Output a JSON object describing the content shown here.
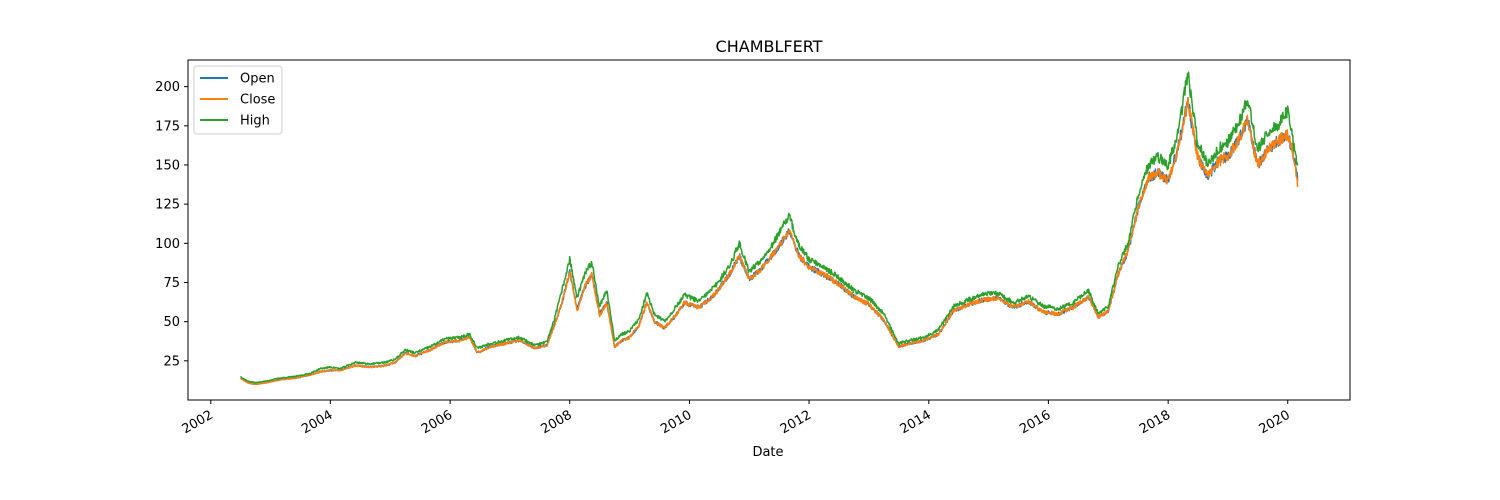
{
  "chart_data": {
    "type": "line",
    "title": "CHAMBLFERT",
    "xlabel": "Date",
    "ylabel": "",
    "x_ticks": [
      "2002",
      "2004",
      "2006",
      "2008",
      "2010",
      "2012",
      "2014",
      "2016",
      "2018",
      "2020"
    ],
    "y_ticks": [
      25,
      50,
      75,
      100,
      125,
      150,
      175,
      200
    ],
    "xlim": [
      "2001-08-15",
      "2021-01-15"
    ],
    "ylim": [
      0,
      217
    ],
    "grid": false,
    "legend_position": "top-left",
    "colors": {
      "Open": "#1f77b4",
      "Close": "#ff7f0e",
      "High": "#2ca02c"
    },
    "base_series": {
      "x": [
        "2002-07-01",
        "2002-08-15",
        "2002-10-01",
        "2002-12-01",
        "2003-03-01",
        "2003-06-01",
        "2003-09-01",
        "2003-11-01",
        "2004-01-01",
        "2004-03-01",
        "2004-06-01",
        "2004-09-01",
        "2004-12-01",
        "2005-02-01",
        "2005-04-01",
        "2005-06-01",
        "2005-09-01",
        "2005-12-01",
        "2006-03-01",
        "2006-05-01",
        "2006-06-15",
        "2006-09-01",
        "2006-12-01",
        "2007-03-01",
        "2007-06-01",
        "2007-08-15",
        "2007-10-01",
        "2007-11-15",
        "2008-01-01",
        "2008-02-15",
        "2008-04-01",
        "2008-05-15",
        "2008-07-01",
        "2008-08-15",
        "2008-10-01",
        "2008-11-15",
        "2009-01-01",
        "2009-03-01",
        "2009-04-15",
        "2009-06-01",
        "2009-08-01",
        "2009-10-01",
        "2009-12-01",
        "2010-03-01",
        "2010-06-01",
        "2010-09-01",
        "2010-11-01",
        "2011-01-01",
        "2011-03-01",
        "2011-05-01",
        "2011-07-01",
        "2011-09-01",
        "2011-11-01",
        "2012-01-01",
        "2012-04-01",
        "2012-07-01",
        "2012-10-01",
        "2013-01-01",
        "2013-04-01",
        "2013-07-01",
        "2013-09-01",
        "2013-12-01",
        "2014-03-01",
        "2014-06-01",
        "2014-09-01",
        "2014-12-01",
        "2015-03-01",
        "2015-06-01",
        "2015-09-01",
        "2015-12-01",
        "2016-03-01",
        "2016-06-01",
        "2016-09-01",
        "2016-11-01",
        "2017-01-01",
        "2017-03-01",
        "2017-05-01",
        "2017-07-01",
        "2017-09-01",
        "2017-11-01",
        "2018-01-01",
        "2018-03-01",
        "2018-05-01",
        "2018-07-01",
        "2018-09-01",
        "2018-11-01",
        "2019-01-01",
        "2019-03-01",
        "2019-05-01",
        "2019-07-01",
        "2019-09-01",
        "2019-11-01",
        "2020-01-01",
        "2020-02-01",
        "2020-03-01"
      ],
      "high": [
        15,
        12,
        11,
        12,
        14,
        15,
        17,
        20,
        21,
        20,
        24,
        23,
        24,
        26,
        32,
        30,
        34,
        39,
        40,
        42,
        33,
        36,
        38,
        40,
        35,
        37,
        52,
        70,
        90,
        65,
        80,
        88,
        60,
        70,
        38,
        42,
        44,
        52,
        68,
        55,
        50,
        58,
        67,
        63,
        72,
        85,
        100,
        82,
        88,
        96,
        106,
        118,
        98,
        90,
        85,
        78,
        70,
        65,
        55,
        36,
        38,
        40,
        45,
        60,
        64,
        68,
        68,
        62,
        66,
        60,
        58,
        62,
        70,
        55,
        60,
        85,
        100,
        130,
        150,
        155,
        150,
        170,
        208,
        165,
        150,
        160,
        165,
        175,
        192,
        160,
        170,
        175,
        185,
        165,
        150
      ],
      "open": [
        14,
        11,
        10,
        11,
        13,
        14,
        16,
        18,
        19,
        19,
        22,
        21,
        22,
        24,
        30,
        28,
        32,
        37,
        38,
        40,
        30,
        34,
        36,
        38,
        33,
        35,
        48,
        62,
        82,
        58,
        72,
        80,
        55,
        62,
        34,
        38,
        40,
        48,
        62,
        50,
        46,
        53,
        62,
        59,
        67,
        80,
        92,
        77,
        82,
        90,
        98,
        108,
        92,
        85,
        80,
        74,
        66,
        61,
        51,
        34,
        36,
        38,
        42,
        57,
        61,
        64,
        65,
        59,
        63,
        56,
        55,
        59,
        66,
        53,
        57,
        80,
        95,
        122,
        142,
        145,
        140,
        160,
        190,
        155,
        143,
        152,
        156,
        165,
        178,
        150,
        160,
        165,
        170,
        158,
        141
      ],
      "close": [
        14,
        11,
        10,
        11,
        13,
        14,
        16,
        18,
        19,
        19,
        22,
        21,
        22,
        24,
        30,
        28,
        32,
        37,
        38,
        40,
        30,
        34,
        36,
        38,
        33,
        35,
        48,
        62,
        82,
        57,
        72,
        80,
        54,
        62,
        34,
        38,
        40,
        48,
        62,
        50,
        46,
        53,
        62,
        59,
        67,
        80,
        92,
        77,
        82,
        90,
        98,
        108,
        92,
        85,
        80,
        74,
        66,
        61,
        51,
        34,
        36,
        38,
        42,
        57,
        61,
        64,
        65,
        59,
        63,
        56,
        55,
        59,
        66,
        53,
        57,
        80,
        95,
        122,
        142,
        145,
        140,
        160,
        190,
        155,
        143,
        152,
        156,
        165,
        178,
        150,
        160,
        165,
        170,
        158,
        138
      ]
    },
    "series": [
      {
        "name": "Open"
      },
      {
        "name": "Close"
      },
      {
        "name": "High"
      }
    ]
  }
}
